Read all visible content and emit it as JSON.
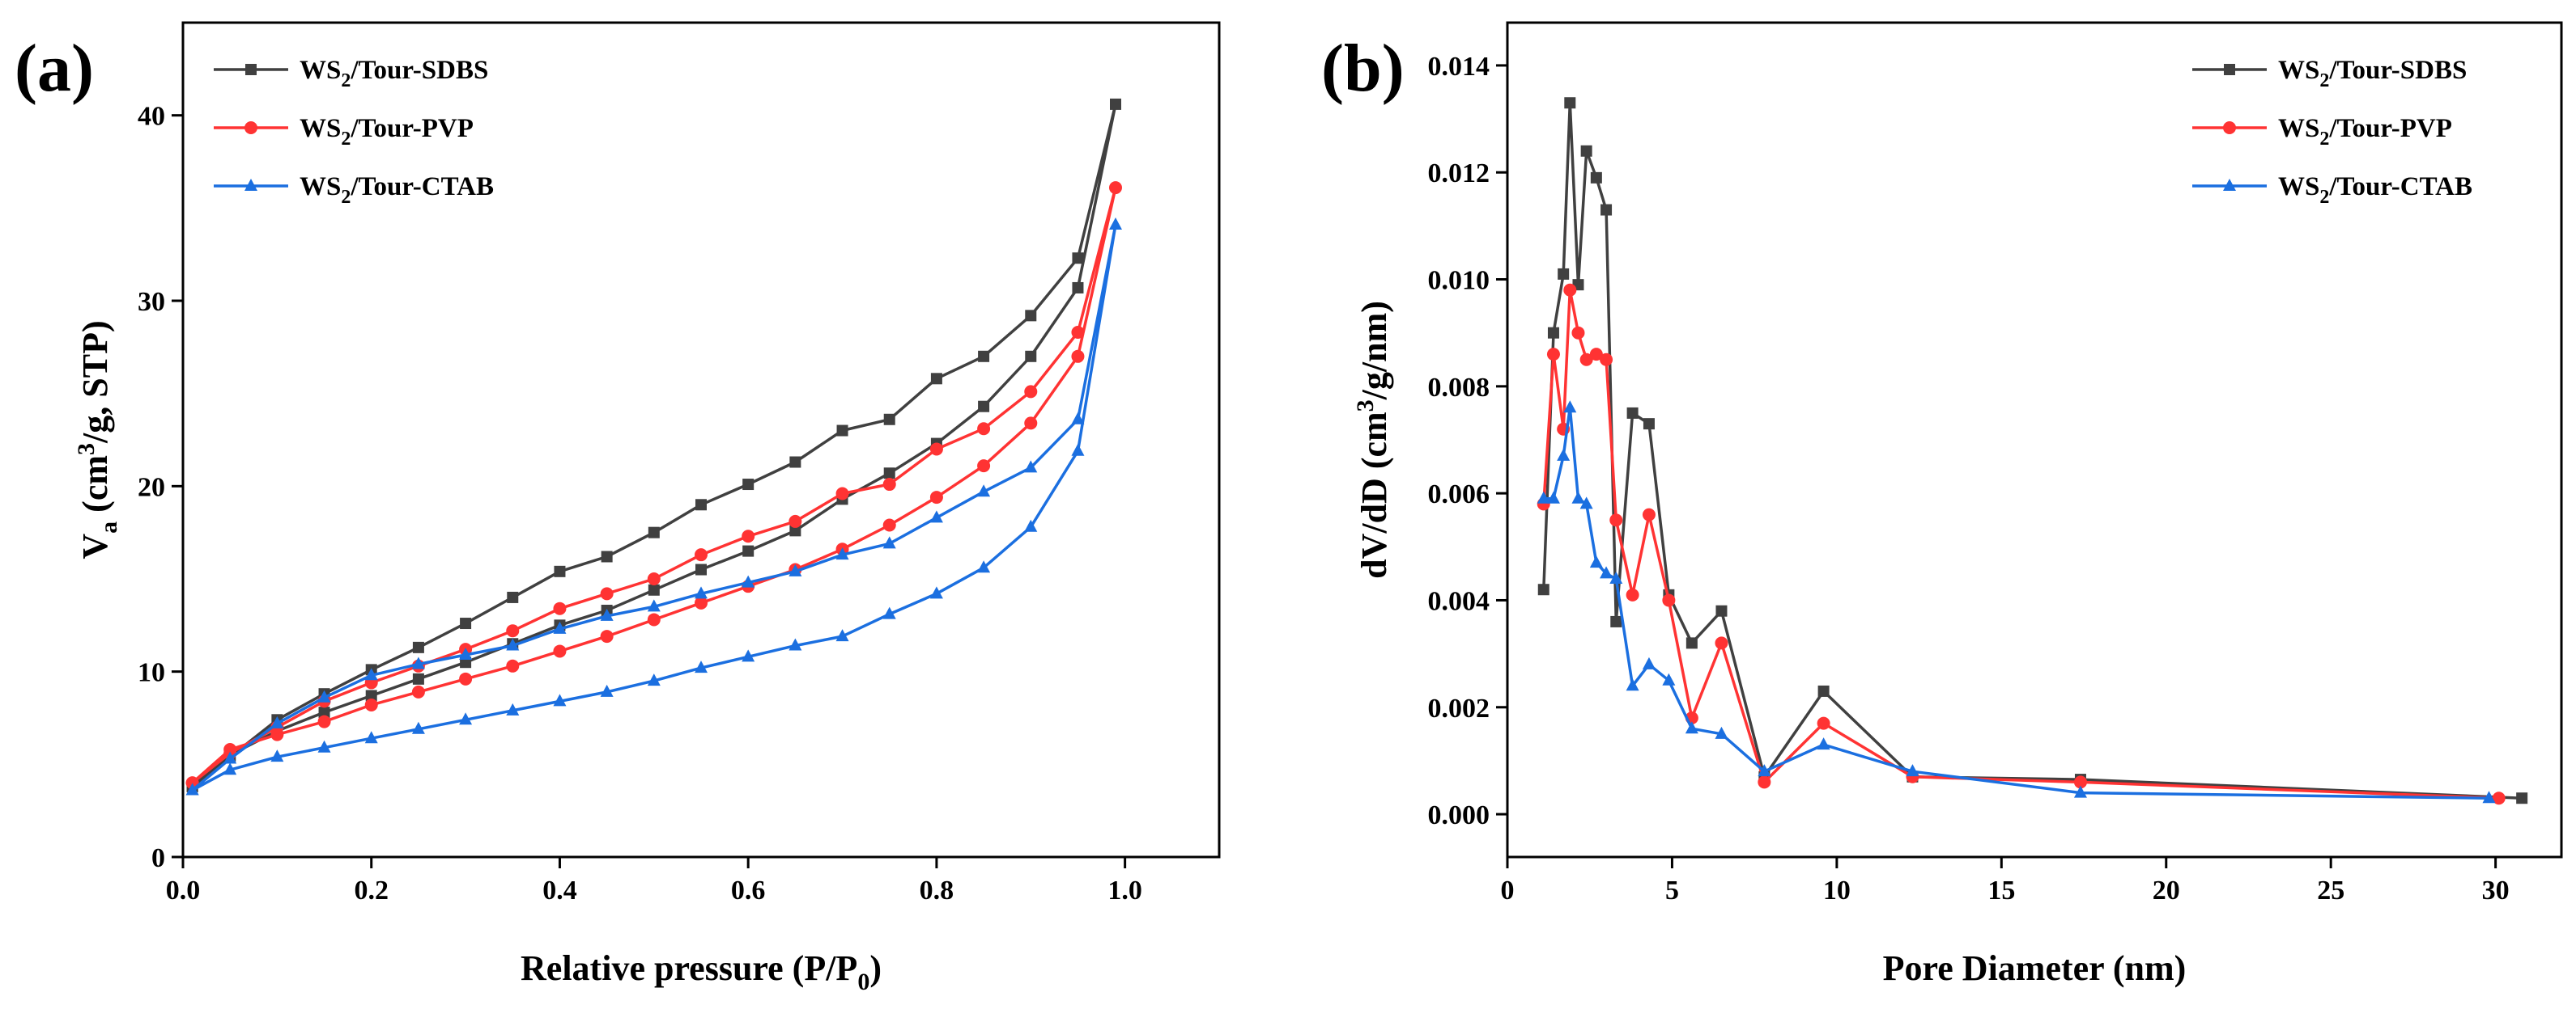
{
  "chart_data": [
    {
      "type": "line",
      "panel_label": "(a)",
      "xlabel": {
        "main": "Relative pressure (P/P",
        "sub": "0",
        "tail": ")"
      },
      "ylabel": {
        "main": "V",
        "sub": "a",
        "rest": " (cm",
        "sup": "3",
        "tail": "/g,  STP)"
      },
      "xlim": [
        0,
        1.1
      ],
      "ylim": [
        0,
        45
      ],
      "xticks": [
        0.0,
        0.2,
        0.4,
        0.6,
        0.8,
        1.0
      ],
      "xtick_labels": [
        "0.0",
        "0.2",
        "0.4",
        "0.6",
        "0.8",
        "1.0"
      ],
      "yticks": [
        0,
        10,
        20,
        30,
        40
      ],
      "ytick_labels": [
        "0",
        "10",
        "20",
        "30",
        "40"
      ],
      "legend_position": "top-left",
      "series": [
        {
          "name": {
            "pre": "WS",
            "sub": "2",
            "post": "/Tour-SDBS"
          },
          "color": "#404040",
          "marker": "square",
          "x": [
            0.01,
            0.05,
            0.1,
            0.15,
            0.2,
            0.25,
            0.3,
            0.35,
            0.4,
            0.45,
            0.5,
            0.55,
            0.6,
            0.65,
            0.7,
            0.75,
            0.8,
            0.85,
            0.9,
            0.95,
            0.99,
            0.95,
            0.9,
            0.85,
            0.8,
            0.75,
            0.7,
            0.65,
            0.6,
            0.55,
            0.5,
            0.45,
            0.4,
            0.35,
            0.3,
            0.25,
            0.2,
            0.15,
            0.1,
            0.05,
            0.01
          ],
          "y": [
            3.8,
            5.5,
            6.8,
            7.8,
            8.7,
            9.6,
            10.5,
            11.5,
            12.5,
            13.3,
            14.4,
            15.5,
            16.5,
            17.6,
            19.3,
            20.7,
            22.3,
            24.3,
            27.0,
            30.7,
            40.6,
            32.3,
            29.2,
            27.0,
            25.8,
            23.6,
            23.0,
            21.3,
            20.1,
            19.0,
            17.5,
            16.2,
            15.4,
            14.0,
            12.6,
            11.3,
            10.1,
            8.8,
            7.4,
            5.4,
            3.8
          ]
        },
        {
          "name": {
            "pre": "WS",
            "sub": "2",
            "post": "/Tour-PVP"
          },
          "color": "#ff3333",
          "marker": "circle",
          "x": [
            0.01,
            0.05,
            0.1,
            0.15,
            0.2,
            0.25,
            0.3,
            0.35,
            0.4,
            0.45,
            0.5,
            0.55,
            0.6,
            0.65,
            0.7,
            0.75,
            0.8,
            0.85,
            0.9,
            0.95,
            0.99,
            0.95,
            0.9,
            0.85,
            0.8,
            0.75,
            0.7,
            0.65,
            0.6,
            0.55,
            0.5,
            0.45,
            0.4,
            0.35,
            0.3,
            0.25,
            0.2,
            0.15,
            0.1,
            0.05,
            0.01
          ],
          "y": [
            4.0,
            5.8,
            6.6,
            7.3,
            8.2,
            8.9,
            9.6,
            10.3,
            11.1,
            11.9,
            12.8,
            13.7,
            14.6,
            15.5,
            16.6,
            17.9,
            19.4,
            21.1,
            23.4,
            27.0,
            36.1,
            28.3,
            25.1,
            23.1,
            22.0,
            20.1,
            19.6,
            18.1,
            17.3,
            16.3,
            15.0,
            14.2,
            13.4,
            12.2,
            11.2,
            10.3,
            9.4,
            8.4,
            7.0,
            5.6,
            4.0
          ]
        },
        {
          "name": {
            "pre": "WS",
            "sub": "2",
            "post": "/Tour-CTAB"
          },
          "color": "#1b6fe0",
          "marker": "triangle",
          "x": [
            0.01,
            0.05,
            0.1,
            0.15,
            0.2,
            0.25,
            0.3,
            0.35,
            0.4,
            0.45,
            0.5,
            0.55,
            0.6,
            0.65,
            0.7,
            0.75,
            0.8,
            0.85,
            0.9,
            0.95,
            0.99,
            0.95,
            0.9,
            0.85,
            0.8,
            0.75,
            0.7,
            0.65,
            0.6,
            0.55,
            0.5,
            0.45,
            0.4,
            0.35,
            0.3,
            0.25,
            0.2,
            0.15,
            0.1,
            0.05,
            0.01
          ],
          "y": [
            3.6,
            4.7,
            5.4,
            5.9,
            6.4,
            6.9,
            7.4,
            7.9,
            8.4,
            8.9,
            9.5,
            10.2,
            10.8,
            11.4,
            11.9,
            13.1,
            14.2,
            15.6,
            17.8,
            21.9,
            34.1,
            23.6,
            21.0,
            19.7,
            18.3,
            16.9,
            16.3,
            15.4,
            14.8,
            14.2,
            13.5,
            13.0,
            12.3,
            11.4,
            10.9,
            10.4,
            9.8,
            8.6,
            7.2,
            5.3,
            3.6
          ]
        }
      ]
    },
    {
      "type": "line",
      "panel_label": "(b)",
      "xlabel": {
        "main": "Pore Diameter (nm)"
      },
      "ylabel": {
        "main": "dV/dD (cm",
        "sup": "3",
        "tail": "/g/nm)"
      },
      "xlim": [
        0,
        32
      ],
      "ylim": [
        -0.0008,
        0.0148
      ],
      "xticks": [
        0,
        5,
        10,
        15,
        20,
        25,
        30
      ],
      "xtick_labels": [
        "0",
        "5",
        "10",
        "15",
        "20",
        "25",
        "30"
      ],
      "yticks": [
        0.0,
        0.002,
        0.004,
        0.006,
        0.008,
        0.01,
        0.012,
        0.014
      ],
      "ytick_labels": [
        "0.000",
        "0.002",
        "0.004",
        "0.006",
        "0.008",
        "0.010",
        "0.012",
        "0.014"
      ],
      "legend_position": "top-right",
      "series": [
        {
          "name": {
            "pre": "WS",
            "sub": "2",
            "post": "/Tour-SDBS"
          },
          "color": "#404040",
          "marker": "square",
          "x": [
            1.1,
            1.4,
            1.7,
            1.9,
            2.15,
            2.4,
            2.7,
            3.0,
            3.3,
            3.8,
            4.3,
            4.9,
            5.6,
            6.5,
            7.8,
            9.6,
            12.3,
            17.4,
            30.8
          ],
          "y": [
            0.0042,
            0.009,
            0.0101,
            0.0133,
            0.0099,
            0.0124,
            0.0119,
            0.0113,
            0.0036,
            0.0075,
            0.0073,
            0.0041,
            0.0032,
            0.0038,
            0.0007,
            0.0023,
            0.0007,
            0.00065,
            0.0003
          ]
        },
        {
          "name": {
            "pre": "WS",
            "sub": "2",
            "post": "/Tour-PVP"
          },
          "color": "#ff3333",
          "marker": "circle",
          "x": [
            1.1,
            1.4,
            1.7,
            1.9,
            2.15,
            2.4,
            2.7,
            3.0,
            3.3,
            3.8,
            4.3,
            4.9,
            5.6,
            6.5,
            7.8,
            9.6,
            12.3,
            17.4,
            30.1
          ],
          "y": [
            0.0058,
            0.0086,
            0.0072,
            0.0098,
            0.009,
            0.0085,
            0.0086,
            0.0085,
            0.0055,
            0.0041,
            0.0056,
            0.004,
            0.0018,
            0.0032,
            0.0006,
            0.0017,
            0.0007,
            0.0006,
            0.0003
          ]
        },
        {
          "name": {
            "pre": "WS",
            "sub": "2",
            "post": "/Tour-CTAB"
          },
          "color": "#1b6fe0",
          "marker": "triangle",
          "x": [
            1.1,
            1.4,
            1.7,
            1.9,
            2.15,
            2.4,
            2.7,
            3.0,
            3.3,
            3.8,
            4.3,
            4.9,
            5.6,
            6.5,
            7.8,
            9.6,
            12.3,
            17.4,
            29.8
          ],
          "y": [
            0.0059,
            0.0059,
            0.0067,
            0.0076,
            0.0059,
            0.0058,
            0.0047,
            0.0045,
            0.0044,
            0.0024,
            0.0028,
            0.0025,
            0.0016,
            0.0015,
            0.0008,
            0.0013,
            0.0008,
            0.0004,
            0.0003
          ]
        }
      ]
    }
  ]
}
